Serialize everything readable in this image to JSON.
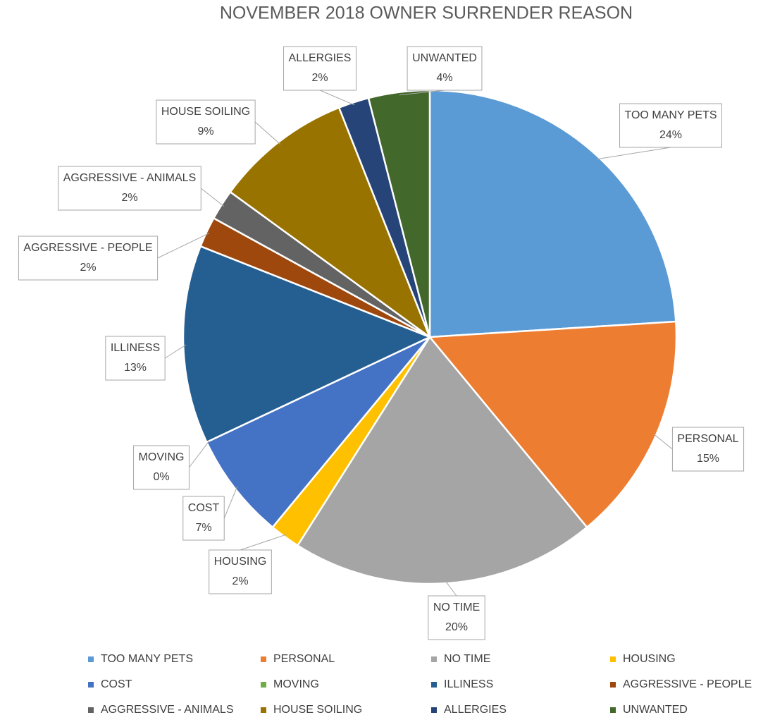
{
  "chart_data": {
    "type": "pie",
    "title": "NOVEMBER 2018 OWNER SURRENDER REASON",
    "categories": [
      "TOO MANY PETS",
      "PERSONAL",
      "NO TIME",
      "HOUSING",
      "COST",
      "MOVING",
      "ILLINESS",
      "AGGRESSIVE - PEOPLE",
      "AGGRESSIVE - ANIMALS",
      "HOUSE SOILING",
      "ALLERGIES",
      "UNWANTED"
    ],
    "values": [
      24,
      15,
      20,
      2,
      7,
      0,
      13,
      2,
      2,
      9,
      2,
      4
    ],
    "value_labels": [
      "24%",
      "15%",
      "20%",
      "2%",
      "7%",
      "0%",
      "13%",
      "2%",
      "2%",
      "9%",
      "2%",
      "4%"
    ],
    "colors": [
      "#5B9BD5",
      "#ED7D31",
      "#A5A5A5",
      "#FFC000",
      "#4472C4",
      "#70AD47",
      "#255E91",
      "#9E480E",
      "#636363",
      "#997300",
      "#264478",
      "#43682B"
    ],
    "legend": "bottom"
  }
}
